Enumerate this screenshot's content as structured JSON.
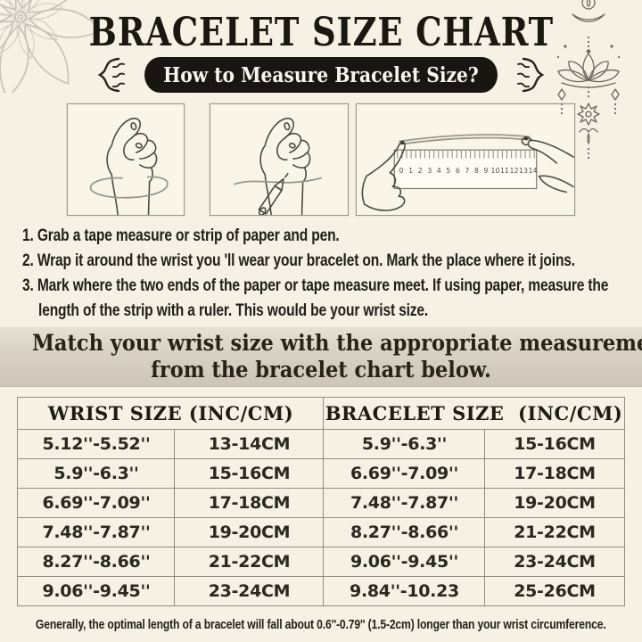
{
  "page": {
    "title": "BRACELET SIZE CHART",
    "badge": "How to Measure Bracelet Size?",
    "footer_note": "Generally, the optimal length of a bracelet will fall about 0.6''-0.79'' (1.5-2cm) longer than your wrist circumference."
  },
  "icons": {
    "top_left": "lotus-mandala-decoration",
    "top_right": "hanging-lotus-ornament",
    "badge_left": "flourish-left",
    "badge_right": "flourish-right"
  },
  "illustrations": {
    "step1": "fist with measuring tape wrapped around wrist",
    "step2": "fist with pen marking the wrist",
    "step3": "hands measuring paper strip against ruler",
    "ruler": {
      "numbers": [
        "0",
        "1",
        "2",
        "3",
        "4",
        "5",
        "6",
        "7",
        "8",
        "9",
        "10",
        "11",
        "12",
        "13",
        "14"
      ]
    }
  },
  "instructions": [
    "1. Grab a tape measure or strip of paper and pen.",
    "2. Wrap it around the wrist you 'll wear your bracelet on. Mark the place where it joins.",
    "3. Mark where the two ends of the paper or tape measure meet. If using paper, measure the length of the strip with a ruler. This would be your wrist size."
  ],
  "banner": {
    "line1": "Match your wrist size with the appropriate measurements",
    "line2": "from the bracelet chart below."
  },
  "size_table": {
    "wrist_header": "WRIST SIZE (INC/CM)",
    "bracelet_header": "BRACELET SIZE  (INC/CM)",
    "rows": [
      {
        "wrist_in": "5.12''-5.52''",
        "wrist_cm": "13-14CM",
        "bracelet_in": "5.9''-6.3''",
        "bracelet_cm": "15-16CM"
      },
      {
        "wrist_in": "5.9''-6.3''",
        "wrist_cm": "15-16CM",
        "bracelet_in": "6.69''-7.09''",
        "bracelet_cm": "17-18CM"
      },
      {
        "wrist_in": "6.69''-7.09''",
        "wrist_cm": "17-18CM",
        "bracelet_in": "7.48''-7.87''",
        "bracelet_cm": "19-20CM"
      },
      {
        "wrist_in": "7.48''-7.87''",
        "wrist_cm": "19-20CM",
        "bracelet_in": "8.27''-8.66''",
        "bracelet_cm": "21-22CM"
      },
      {
        "wrist_in": "8.27''-8.66''",
        "wrist_cm": "21-22CM",
        "bracelet_in": "9.06''-9.45''",
        "bracelet_cm": "23-24CM"
      },
      {
        "wrist_in": "9.06''-9.45''",
        "wrist_cm": "23-24CM",
        "bracelet_in": "9.84''-10.23",
        "bracelet_cm": "25-26CM"
      }
    ]
  },
  "colors": {
    "background": "#f6f1e4",
    "badge_bg": "#191611",
    "badge_text": "#f8f5ec",
    "banner_bg": "#d8d1c4",
    "table_border": "#8f8c82",
    "text": "#23201a"
  }
}
